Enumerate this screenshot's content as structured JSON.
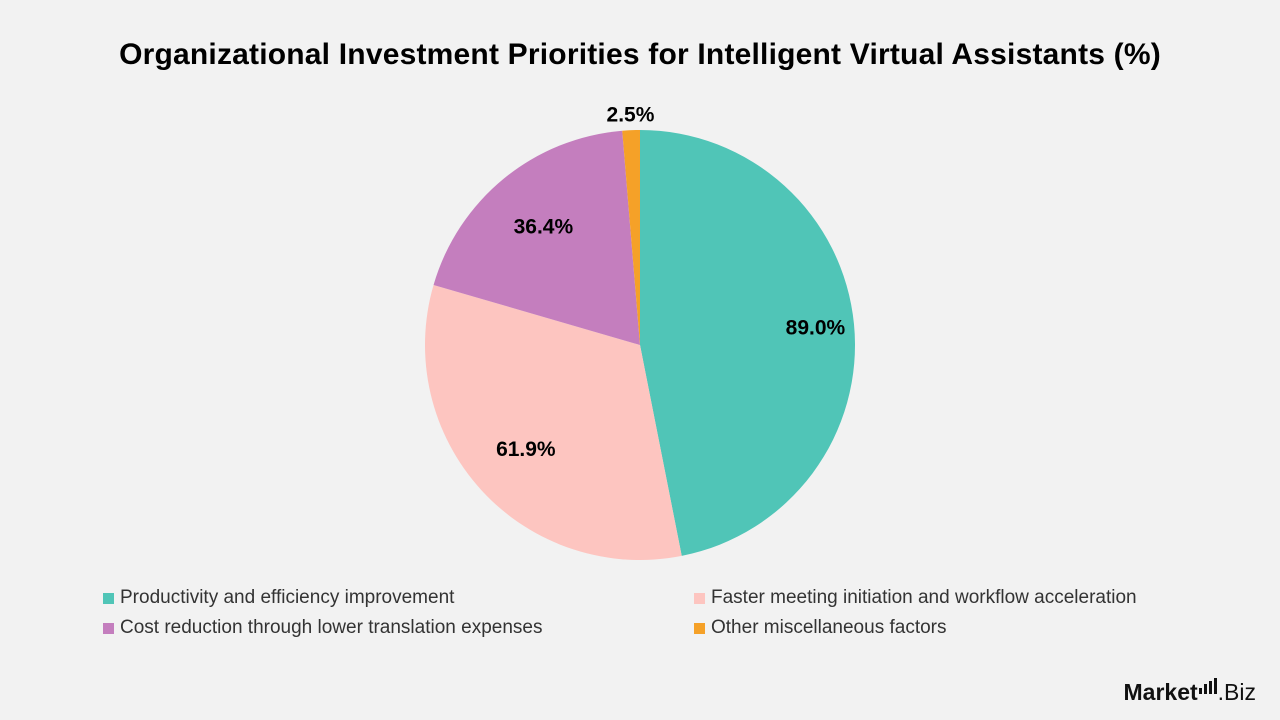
{
  "chart_data": {
    "type": "pie",
    "title": "Organizational Investment Priorities for Intelligent Virtual Assistants (%)",
    "slices": [
      {
        "label": "Productivity and efficiency improvement",
        "value": 89.0,
        "value_label": "89.0%",
        "color": "#50c5b7"
      },
      {
        "label": "Faster meeting initiation and workflow acceleration",
        "value": 61.9,
        "value_label": "61.9%",
        "color": "#fdc5c0"
      },
      {
        "label": "Cost reduction through lower translation expenses",
        "value": 36.4,
        "value_label": "36.4%",
        "color": "#c47ebe"
      },
      {
        "label": "Other miscellaneous factors",
        "value": 2.5,
        "value_label": "2.5%",
        "color": "#f5a128"
      }
    ],
    "start_angle": "12 o'clock",
    "direction": "clockwise",
    "legend_position": "bottom"
  },
  "branding": {
    "part1": "Market",
    "part2": ".Biz"
  }
}
